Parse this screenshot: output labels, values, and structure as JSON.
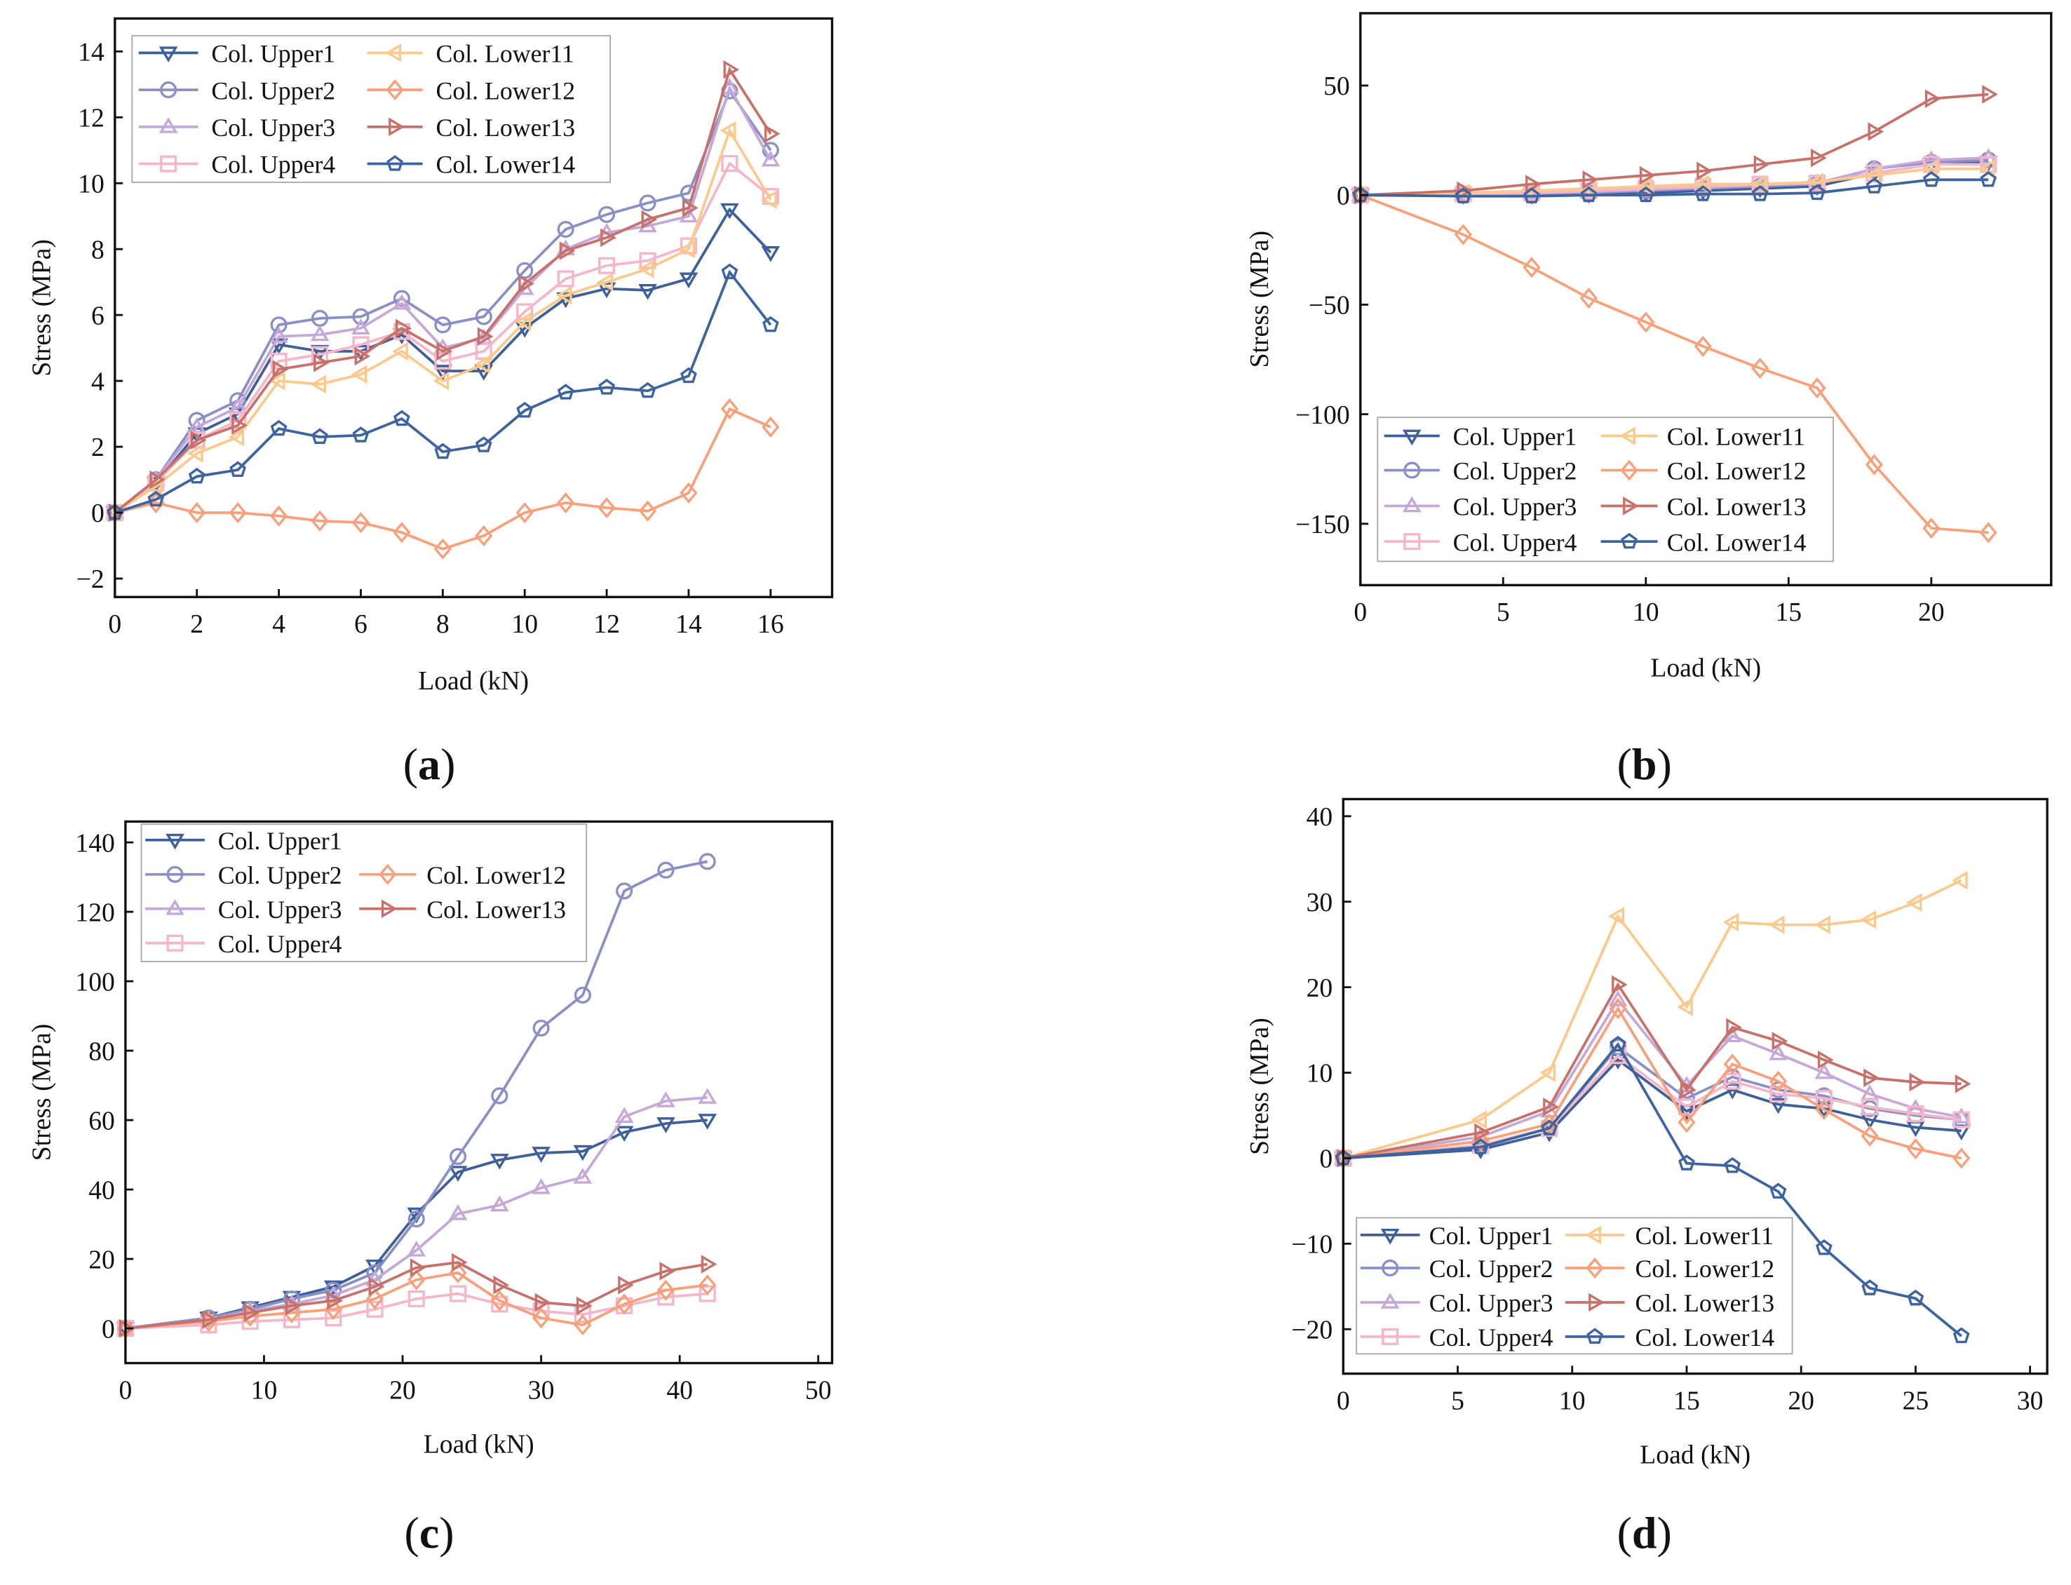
{
  "chart_data": [
    {
      "type": "line",
      "panel_label": "a",
      "xlabel": "Load (kN)",
      "ylabel": "Stress (MPa)",
      "xlim": [
        0,
        17.5
      ],
      "ylim": [
        -2.56,
        15
      ],
      "xticks": [
        0,
        2,
        4,
        6,
        8,
        10,
        12,
        14,
        16
      ],
      "xtick_labels": [
        "0",
        "2",
        "4",
        "6",
        "8",
        "10",
        "12",
        "14",
        "16"
      ],
      "yticks": [
        -2,
        0,
        2,
        4,
        6,
        8,
        10,
        12,
        14
      ],
      "ytick_labels": [
        "−2",
        "0",
        "2",
        "4",
        "6",
        "8",
        "10",
        "12",
        "14"
      ],
      "legend_rows": [
        [
          0,
          4
        ],
        [
          1,
          5
        ],
        [
          2,
          6
        ],
        [
          3,
          7
        ]
      ],
      "x": [
        0,
        1,
        2,
        3,
        4,
        5,
        6,
        7,
        8,
        9,
        10,
        11,
        12,
        13,
        14,
        15,
        16
      ],
      "series": [
        {
          "name": "Col. Upper1",
          "color": "#3d5f9a",
          "marker": "tri-down",
          "values": [
            0,
            0.9,
            2.4,
            3.0,
            5.1,
            4.9,
            4.9,
            5.4,
            4.3,
            4.3,
            5.6,
            6.5,
            6.8,
            6.75,
            7.1,
            9.2,
            7.9
          ]
        },
        {
          "name": "Col. Upper2",
          "color": "#8a8fc8",
          "marker": "circle",
          "values": [
            0,
            1.0,
            2.8,
            3.4,
            5.7,
            5.9,
            5.95,
            6.5,
            5.7,
            5.95,
            7.35,
            8.6,
            9.05,
            9.4,
            9.7,
            12.8,
            11.0
          ]
        },
        {
          "name": "Col. Upper3",
          "color": "#c5a8d8",
          "marker": "tri-up",
          "values": [
            0,
            1.0,
            2.6,
            3.2,
            5.35,
            5.4,
            5.6,
            6.35,
            5.0,
            5.3,
            6.8,
            8.0,
            8.5,
            8.7,
            9.0,
            12.9,
            10.7
          ]
        },
        {
          "name": "Col. Upper4",
          "color": "#f4b6c8",
          "marker": "square",
          "values": [
            0,
            0.9,
            2.2,
            2.8,
            4.6,
            4.8,
            5.1,
            5.5,
            4.6,
            4.9,
            6.1,
            7.1,
            7.5,
            7.65,
            8.1,
            10.6,
            9.6
          ]
        },
        {
          "name": "Col. Lower11",
          "color": "#fcc98c",
          "marker": "tri-left",
          "values": [
            0,
            0.8,
            1.8,
            2.3,
            4.0,
            3.9,
            4.2,
            4.9,
            4.0,
            4.5,
            5.8,
            6.6,
            7.0,
            7.4,
            8.0,
            11.6,
            9.5
          ]
        },
        {
          "name": "Col. Lower12",
          "color": "#f8a07a",
          "marker": "diamond",
          "values": [
            0,
            0.3,
            0,
            0,
            -0.1,
            -0.25,
            -0.3,
            -0.6,
            -1.1,
            -0.7,
            0,
            0.3,
            0.15,
            0.05,
            0.6,
            3.15,
            2.6
          ]
        },
        {
          "name": "Col. Lower13",
          "color": "#c8716a",
          "marker": "tri-right",
          "values": [
            0,
            1.0,
            2.2,
            2.65,
            4.35,
            4.55,
            4.75,
            5.6,
            4.9,
            5.35,
            6.95,
            7.95,
            8.35,
            8.9,
            9.25,
            13.45,
            11.5
          ]
        },
        {
          "name": "Col. Lower14",
          "color": "#3d64a0",
          "marker": "pentagon",
          "values": [
            0,
            0.4,
            1.1,
            1.3,
            2.55,
            2.3,
            2.35,
            2.85,
            1.85,
            2.05,
            3.1,
            3.65,
            3.8,
            3.7,
            4.15,
            7.3,
            5.7
          ]
        }
      ]
    },
    {
      "type": "line",
      "panel_label": "b",
      "xlabel": "Load (kN)",
      "ylabel": "Stress (MPa)",
      "xlim": [
        0,
        24.2
      ],
      "ylim": [
        -178,
        83
      ],
      "xticks": [
        0,
        5,
        10,
        15,
        20
      ],
      "xtick_labels": [
        "0",
        "5",
        "10",
        "15",
        "20"
      ],
      "yticks": [
        -150,
        -100,
        -50,
        0,
        50
      ],
      "ytick_labels": [
        "−150",
        "−100",
        "−50",
        "0",
        "50"
      ],
      "legend_rows": [
        [
          0,
          4
        ],
        [
          1,
          5
        ],
        [
          2,
          6
        ],
        [
          3,
          7
        ]
      ],
      "x": [
        0,
        3.6,
        6,
        8,
        10,
        12,
        14,
        16,
        18,
        20,
        22
      ],
      "series": [
        {
          "name": "Col. Upper1",
          "color": "#3d5f9a",
          "marker": "tri-down",
          "values": [
            0,
            0,
            0,
            0.5,
            1,
            2,
            3,
            4,
            10,
            14,
            15
          ]
        },
        {
          "name": "Col. Upper2",
          "color": "#8a8fc8",
          "marker": "circle",
          "values": [
            0,
            0,
            0.5,
            1,
            2,
            3,
            4,
            5,
            12,
            15,
            16
          ]
        },
        {
          "name": "Col. Upper3",
          "color": "#c5a8d8",
          "marker": "tri-up",
          "values": [
            0,
            0.5,
            1,
            1.5,
            2.5,
            3.5,
            4.5,
            5.5,
            12,
            16,
            17
          ]
        },
        {
          "name": "Col. Upper4",
          "color": "#f4b6c8",
          "marker": "square",
          "values": [
            0,
            0.5,
            1,
            2,
            3,
            4,
            5,
            5.5,
            10,
            14,
            14
          ]
        },
        {
          "name": "Col. Lower11",
          "color": "#fcc98c",
          "marker": "tri-left",
          "values": [
            0,
            1,
            2,
            3,
            4,
            5,
            5,
            6,
            9,
            12,
            12
          ]
        },
        {
          "name": "Col. Lower12",
          "color": "#f8a07a",
          "marker": "diamond",
          "values": [
            0,
            -18,
            -33,
            -47,
            -58,
            -69,
            -79,
            -88,
            -123,
            -152,
            -154
          ]
        },
        {
          "name": "Col. Lower13",
          "color": "#c8716a",
          "marker": "tri-right",
          "values": [
            0,
            2,
            5,
            7,
            9,
            11,
            14,
            17,
            29,
            44,
            46
          ]
        },
        {
          "name": "Col. Lower14",
          "color": "#3d64a0",
          "marker": "pentagon",
          "values": [
            0,
            -0.5,
            -0.5,
            0,
            0,
            0.5,
            0.5,
            1,
            4,
            7,
            7
          ]
        }
      ]
    },
    {
      "type": "line",
      "panel_label": "c",
      "xlabel": "Load (kN)",
      "ylabel": "Stress (MPa)",
      "xlim": [
        0,
        51
      ],
      "ylim": [
        -10,
        146
      ],
      "xticks": [
        0,
        10,
        20,
        30,
        40,
        50
      ],
      "xtick_labels": [
        "0",
        "10",
        "20",
        "30",
        "40",
        "50"
      ],
      "yticks": [
        0,
        20,
        40,
        60,
        80,
        100,
        120,
        140
      ],
      "ytick_labels": [
        "0",
        "20",
        "40",
        "60",
        "80",
        "100",
        "120",
        "140"
      ],
      "legend_rows": [
        [
          0,
          null
        ],
        [
          1,
          4
        ],
        [
          2,
          5
        ],
        [
          3,
          null
        ]
      ],
      "x": [
        0,
        6,
        9,
        12,
        15,
        18,
        21,
        24,
        27,
        30,
        33,
        36,
        39,
        42
      ],
      "series": [
        {
          "name": "Col. Upper1",
          "color": "#3d5f9a",
          "marker": "tri-down",
          "values": [
            0,
            3,
            6,
            9,
            12,
            18,
            33,
            45,
            48.5,
            50.5,
            51,
            56.5,
            59,
            60
          ]
        },
        {
          "name": "Col. Upper2",
          "color": "#8a8fc8",
          "marker": "circle",
          "values": [
            0,
            3,
            5.5,
            8.5,
            11,
            16,
            31.5,
            49.5,
            67,
            86.5,
            96,
            126,
            132,
            134.5
          ]
        },
        {
          "name": "Col. Upper3",
          "color": "#c5a8d8",
          "marker": "tri-up",
          "values": [
            0,
            2.5,
            5,
            7,
            9.5,
            14,
            22.5,
            33,
            35.5,
            40.5,
            43.5,
            61,
            65.5,
            66.5
          ]
        },
        {
          "name": "Col. Upper4",
          "color": "#f4b6c8",
          "marker": "square",
          "values": [
            0,
            1,
            2,
            2.5,
            3,
            5.5,
            8.5,
            10,
            7,
            5,
            4,
            6.5,
            9,
            10
          ]
        },
        {
          "name": "Col. Lower12",
          "color": "#f8a07a",
          "marker": "diamond",
          "values": [
            0,
            2,
            3.5,
            4.5,
            5.5,
            8.5,
            14,
            16,
            8,
            3,
            1,
            7,
            11,
            12.5
          ]
        },
        {
          "name": "Col. Lower13",
          "color": "#c8716a",
          "marker": "tri-right",
          "values": [
            0,
            2.5,
            4.5,
            6.5,
            8,
            12,
            17.5,
            19,
            12.5,
            7.5,
            6.5,
            12.5,
            16.5,
            18.5
          ]
        }
      ]
    },
    {
      "type": "line",
      "panel_label": "d",
      "xlabel": "Load (kN)",
      "ylabel": "Stress (MPa)",
      "xlim": [
        0,
        30.75
      ],
      "ylim": [
        -25.2,
        42
      ],
      "xticks": [
        0,
        5,
        10,
        15,
        20,
        25,
        30
      ],
      "xtick_labels": [
        "0",
        "5",
        "10",
        "15",
        "20",
        "25",
        "30"
      ],
      "yticks": [
        -20,
        -10,
        0,
        10,
        20,
        30,
        40
      ],
      "ytick_labels": [
        "−20",
        "−10",
        "0",
        "10",
        "20",
        "30",
        "40"
      ],
      "legend_rows": [
        [
          0,
          4
        ],
        [
          1,
          5
        ],
        [
          2,
          6
        ],
        [
          3,
          7
        ]
      ],
      "x": [
        0,
        6,
        9,
        12,
        15,
        17,
        19,
        21,
        23,
        25,
        27
      ],
      "series": [
        {
          "name": "Col. Upper1",
          "color": "#3d5f9a",
          "marker": "tri-down",
          "values": [
            0,
            1,
            3,
            11.5,
            5.5,
            8,
            6.3,
            5.8,
            4.5,
            3.6,
            3.2
          ]
        },
        {
          "name": "Col. Upper2",
          "color": "#8a8fc8",
          "marker": "circle",
          "values": [
            0,
            1.5,
            3.5,
            13,
            7,
            9.5,
            8,
            7.3,
            5.8,
            5,
            4.5
          ]
        },
        {
          "name": "Col. Upper3",
          "color": "#c5a8d8",
          "marker": "tri-up",
          "values": [
            0,
            2.5,
            5.5,
            18.5,
            8.5,
            14.3,
            12.2,
            10,
            7.5,
            5.8,
            4.8
          ]
        },
        {
          "name": "Col. Upper4",
          "color": "#f4b6c8",
          "marker": "square",
          "values": [
            0,
            1.5,
            3.5,
            12,
            6,
            9,
            7.5,
            7,
            6,
            5.2,
            4.5
          ]
        },
        {
          "name": "Col. Lower11",
          "color": "#fcc98c",
          "marker": "tri-left",
          "values": [
            0,
            4.5,
            10,
            28.3,
            17.7,
            27.6,
            27.3,
            27.3,
            27.9,
            29.9,
            32.5
          ]
        },
        {
          "name": "Col. Lower12",
          "color": "#f8a07a",
          "marker": "diamond",
          "values": [
            0,
            2,
            4,
            17.5,
            4.2,
            11,
            9,
            5.7,
            2.6,
            1.1,
            0
          ]
        },
        {
          "name": "Col. Lower13",
          "color": "#c8716a",
          "marker": "tri-right",
          "values": [
            0,
            3,
            6,
            20.3,
            8,
            15.3,
            13.7,
            11.5,
            9.4,
            8.9,
            8.7
          ]
        },
        {
          "name": "Col. Lower14",
          "color": "#3d64a0",
          "marker": "pentagon",
          "values": [
            0,
            1.3,
            3.5,
            13.3,
            -0.6,
            -0.9,
            -3.9,
            -10.5,
            -15.2,
            -16.4,
            -20.8
          ]
        }
      ]
    }
  ]
}
